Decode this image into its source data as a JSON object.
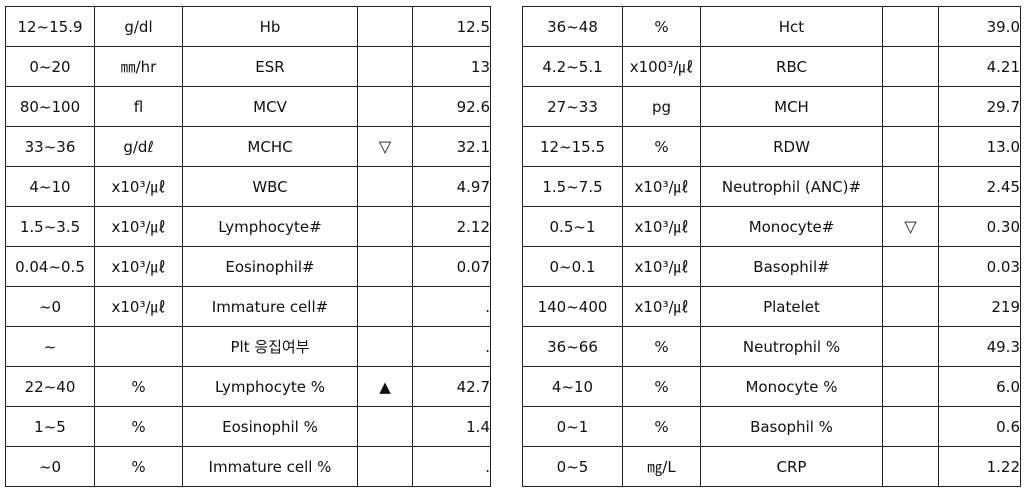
{
  "left_table": {
    "rows": [
      {
        "range": "12~15.9",
        "unit": "g/dl",
        "name": "Hb",
        "flag": "",
        "value": "12.5"
      },
      {
        "range": "0~20",
        "unit": "㎜/hr",
        "name": "ESR",
        "flag": "",
        "value": "13"
      },
      {
        "range": "80~100",
        "unit": "fl",
        "name": "MCV",
        "flag": "",
        "value": "92.6"
      },
      {
        "range": "33~36",
        "unit": "g/dℓ",
        "name": "MCHC",
        "flag": "▽",
        "value": "32.1"
      },
      {
        "range": "4~10",
        "unit": "x10³/㎕",
        "name": "WBC",
        "flag": "",
        "value": "4.97"
      },
      {
        "range": "1.5~3.5",
        "unit": "x10³/㎕",
        "name": "Lymphocyte#",
        "flag": "",
        "value": "2.12"
      },
      {
        "range": "0.04~0.5",
        "unit": "x10³/㎕",
        "name": "Eosinophil#",
        "flag": "",
        "value": "0.07"
      },
      {
        "range": "~0",
        "unit": "x10³/㎕",
        "name": "Immature cell#",
        "flag": "",
        "value": "."
      },
      {
        "range": "~",
        "unit": "",
        "name": "Plt 응집여부",
        "flag": "",
        "value": "."
      },
      {
        "range": "22~40",
        "unit": "%",
        "name": "Lymphocyte %",
        "flag": "▲",
        "value": "42.7"
      },
      {
        "range": "1~5",
        "unit": "%",
        "name": "Eosinophil %",
        "flag": "",
        "value": "1.4"
      },
      {
        "range": "~0",
        "unit": "%",
        "name": "Immature cell %",
        "flag": "",
        "value": "."
      }
    ]
  },
  "right_table": {
    "rows": [
      {
        "range": "36~48",
        "unit": "%",
        "name": "Hct",
        "flag": "",
        "value": "39.0"
      },
      {
        "range": "4.2~5.1",
        "unit": "x100³/㎕",
        "name": "RBC",
        "flag": "",
        "value": "4.21"
      },
      {
        "range": "27~33",
        "unit": "pg",
        "name": "MCH",
        "flag": "",
        "value": "29.7"
      },
      {
        "range": "12~15.5",
        "unit": "%",
        "name": "RDW",
        "flag": "",
        "value": "13.0"
      },
      {
        "range": "1.5~7.5",
        "unit": "x10³/㎕",
        "name": "Neutrophil (ANC)#",
        "flag": "",
        "value": "2.45"
      },
      {
        "range": "0.5~1",
        "unit": "x10³/㎕",
        "name": "Monocyte#",
        "flag": "▽",
        "value": "0.30"
      },
      {
        "range": "0~0.1",
        "unit": "x10³/㎕",
        "name": "Basophil#",
        "flag": "",
        "value": "0.03"
      },
      {
        "range": "140~400",
        "unit": "x10³/㎕",
        "name": "Platelet",
        "flag": "",
        "value": "219"
      },
      {
        "range": "36~66",
        "unit": "%",
        "name": "Neutrophil %",
        "flag": "",
        "value": "49.3"
      },
      {
        "range": "4~10",
        "unit": "%",
        "name": "Monocyte %",
        "flag": "",
        "value": "6.0"
      },
      {
        "range": "0~1",
        "unit": "%",
        "name": "Basophil %",
        "flag": "",
        "value": "0.6"
      },
      {
        "range": "0~5",
        "unit": "㎎/L",
        "name": "CRP",
        "flag": "",
        "value": "1.22"
      }
    ]
  }
}
